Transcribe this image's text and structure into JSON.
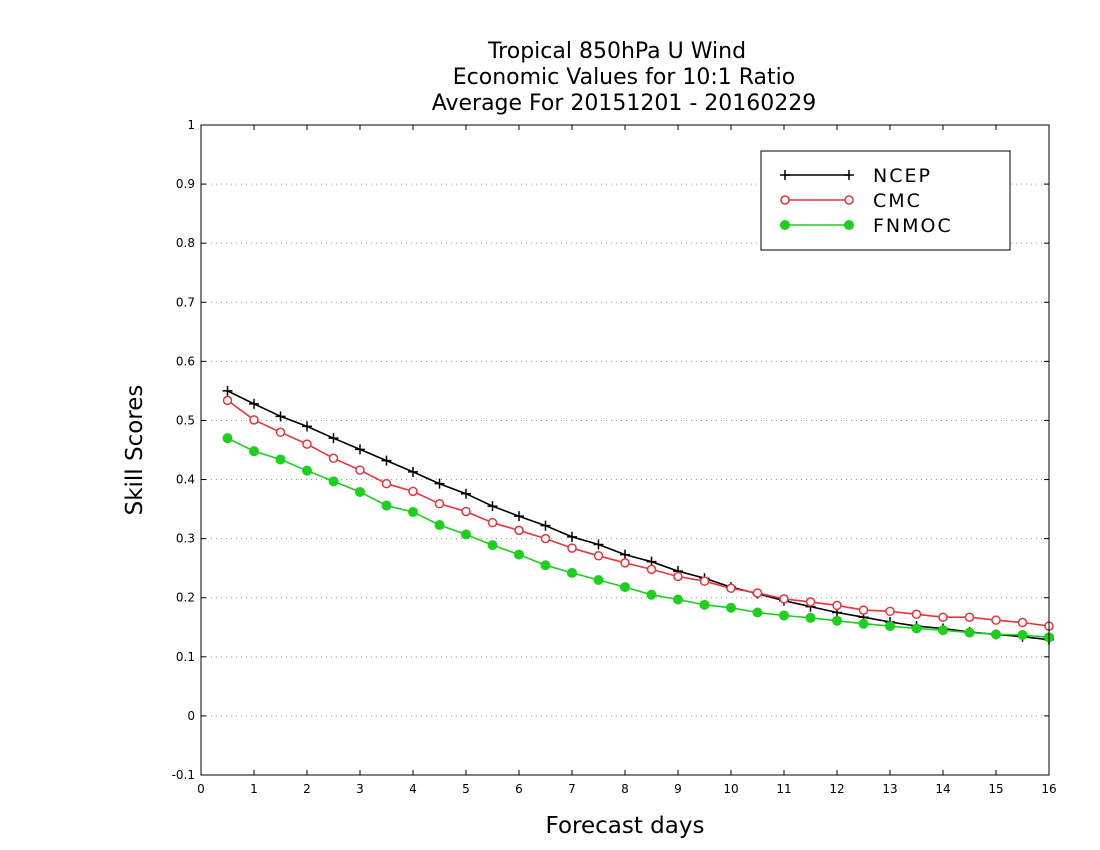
{
  "chart_data": {
    "type": "line",
    "title": [
      "Tropical 850hPa U Wind",
      "Economic Values for 10:1 Ratio",
      "Average For 20151201 - 20160229"
    ],
    "xlabel": "Forecast days",
    "ylabel": "Skill Scores",
    "xlim": [
      0,
      16
    ],
    "ylim": [
      -0.1,
      1
    ],
    "xticks": [
      0,
      1,
      2,
      3,
      4,
      5,
      6,
      7,
      8,
      9,
      10,
      11,
      12,
      13,
      14,
      15,
      16
    ],
    "yticks": [
      -0.1,
      0,
      0.1,
      0.2,
      0.3,
      0.4,
      0.5,
      0.6,
      0.7,
      0.8,
      0.9,
      1
    ],
    "ytick_labels": [
      "-0.1",
      "0",
      "0.1",
      "0.2",
      "0.3",
      "0.4",
      "0.5",
      "0.6",
      "0.7",
      "0.8",
      "0.9",
      "1"
    ],
    "grid": true,
    "legend_position": "top-right",
    "x": [
      0.5,
      1,
      1.5,
      2,
      2.5,
      3,
      3.5,
      4,
      4.5,
      5,
      5.5,
      6,
      6.5,
      7,
      7.5,
      8,
      8.5,
      9,
      9.5,
      10,
      10.5,
      11,
      11.5,
      12,
      12.5,
      13,
      13.5,
      14,
      14.5,
      15,
      15.5,
      16
    ],
    "series": [
      {
        "name": "NCEP",
        "color": "#000000",
        "marker": "plus",
        "values": [
          0.55,
          0.528,
          0.507,
          0.49,
          0.47,
          0.451,
          0.432,
          0.413,
          0.393,
          0.376,
          0.355,
          0.338,
          0.322,
          0.303,
          0.29,
          0.273,
          0.261,
          0.245,
          0.233,
          0.218,
          0.207,
          0.195,
          0.185,
          0.175,
          0.167,
          0.159,
          0.152,
          0.148,
          0.142,
          0.138,
          0.134,
          0.129
        ]
      },
      {
        "name": "CMC",
        "color": "#e8343a",
        "marker": "open-circle",
        "values": [
          0.534,
          0.501,
          0.48,
          0.46,
          0.436,
          0.416,
          0.393,
          0.38,
          0.359,
          0.346,
          0.327,
          0.314,
          0.3,
          0.284,
          0.271,
          0.259,
          0.248,
          0.236,
          0.228,
          0.216,
          0.208,
          0.198,
          0.193,
          0.187,
          0.179,
          0.177,
          0.172,
          0.167,
          0.167,
          0.162,
          0.158,
          0.152
        ]
      },
      {
        "name": "FNMOC",
        "color": "#1dd01d",
        "marker": "filled-circle",
        "values": [
          0.47,
          0.448,
          0.434,
          0.415,
          0.397,
          0.379,
          0.356,
          0.345,
          0.323,
          0.307,
          0.289,
          0.273,
          0.255,
          0.242,
          0.23,
          0.218,
          0.205,
          0.197,
          0.188,
          0.183,
          0.175,
          0.17,
          0.166,
          0.161,
          0.156,
          0.152,
          0.148,
          0.145,
          0.141,
          0.138,
          0.137,
          0.133
        ]
      }
    ]
  }
}
